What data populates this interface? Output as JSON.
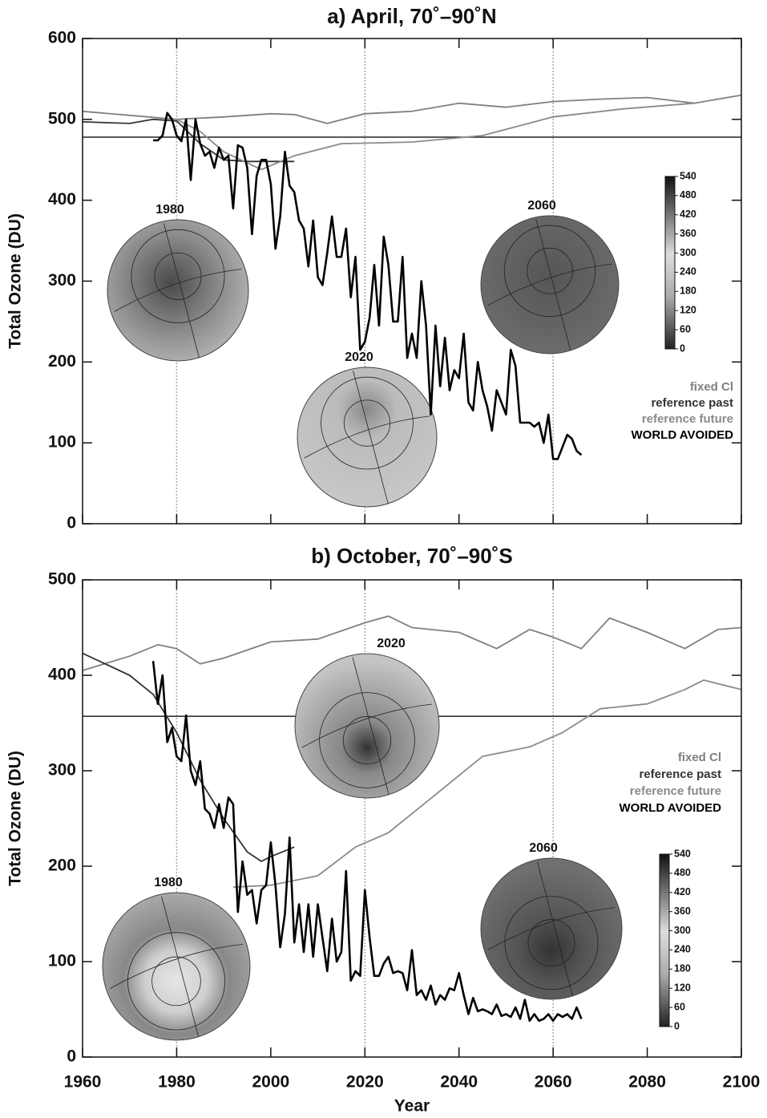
{
  "chart_data": [
    {
      "type": "line",
      "title": "a) April, 70˚–90˚N",
      "ylabel": "Total Ozone (DU)",
      "xlim": [
        1960,
        2100
      ],
      "xticks": [
        1960,
        1980,
        2000,
        2020,
        2040,
        2060,
        2080,
        2100
      ],
      "xtick_labels": false,
      "ylim": [
        0,
        600
      ],
      "yticks": [
        0,
        100,
        200,
        300,
        400,
        500,
        600
      ],
      "xgrid": [
        1980,
        2020,
        2060
      ],
      "hline": 478,
      "series": [
        {
          "name": "fixed Cl",
          "color": "#808080",
          "x": [
            1960,
            1970,
            1980,
            1990,
            2000,
            2005,
            2012,
            2020,
            2030,
            2040,
            2050,
            2060,
            2070,
            2080,
            2090,
            2100
          ],
          "values": [
            510,
            505,
            500,
            503,
            507,
            506,
            495,
            507,
            510,
            520,
            515,
            522,
            525,
            527,
            520,
            530
          ]
        },
        {
          "name": "reference past",
          "color": "#333333",
          "x": [
            1960,
            1970,
            1975,
            1980,
            1985,
            1990,
            1995,
            2000,
            2005
          ],
          "values": [
            497,
            495,
            500,
            498,
            470,
            450,
            448,
            448,
            448
          ]
        },
        {
          "name": "reference future",
          "color": "#8a8a8a",
          "x": [
            1980,
            1985,
            1990,
            1998,
            2005,
            2015,
            2030,
            2045,
            2060,
            2075,
            2090,
            2100
          ],
          "values": [
            500,
            485,
            460,
            438,
            455,
            470,
            472,
            480,
            503,
            513,
            520,
            530
          ]
        },
        {
          "name": "WORLD AVOIDED",
          "color": "#000000",
          "x": [
            1975,
            1976,
            1977,
            1978,
            1979,
            1980,
            1981,
            1982,
            1983,
            1984,
            1985,
            1986,
            1987,
            1988,
            1989,
            1990,
            1991,
            1992,
            1993,
            1994,
            1995,
            1996,
            1997,
            1998,
            1999,
            2000,
            2001,
            2002,
            2003,
            2004,
            2005,
            2006,
            2007,
            2008,
            2009,
            2010,
            2011,
            2012,
            2013,
            2014,
            2015,
            2016,
            2017,
            2018,
            2019,
            2020,
            2021,
            2022,
            2023,
            2024,
            2025,
            2026,
            2027,
            2028,
            2029,
            2030,
            2031,
            2032,
            2033,
            2034,
            2035,
            2036,
            2037,
            2038,
            2039,
            2040,
            2041,
            2042,
            2043,
            2044,
            2045,
            2046,
            2047,
            2048,
            2049,
            2050,
            2051,
            2052,
            2053,
            2054,
            2055,
            2056,
            2057,
            2058,
            2059,
            2060,
            2061,
            2062,
            2063,
            2064,
            2065,
            2066
          ],
          "values": [
            474,
            474,
            480,
            508,
            500,
            480,
            473,
            500,
            425,
            500,
            470,
            455,
            460,
            440,
            465,
            450,
            455,
            390,
            468,
            465,
            440,
            358,
            430,
            450,
            450,
            420,
            340,
            380,
            460,
            418,
            410,
            375,
            365,
            318,
            375,
            305,
            295,
            335,
            380,
            330,
            330,
            365,
            280,
            330,
            215,
            225,
            255,
            320,
            245,
            355,
            320,
            250,
            250,
            330,
            205,
            235,
            205,
            300,
            245,
            135,
            245,
            170,
            230,
            165,
            190,
            180,
            235,
            150,
            140,
            200,
            165,
            145,
            115,
            165,
            150,
            135,
            215,
            195,
            125,
            125,
            125,
            120,
            125,
            100,
            135,
            80,
            80,
            95,
            110,
            105,
            90,
            85
          ]
        }
      ],
      "globes": [
        {
          "label": "1980"
        },
        {
          "label": "2020"
        },
        {
          "label": "2060"
        }
      ],
      "colorbar_ticks": [
        540,
        480,
        420,
        360,
        300,
        240,
        180,
        120,
        60,
        0
      ]
    },
    {
      "type": "line",
      "title": "b) October, 70˚–90˚S",
      "ylabel": "Total Ozone (DU)",
      "xlabel": "Year",
      "xlim": [
        1960,
        2100
      ],
      "xticks": [
        1960,
        1980,
        2000,
        2020,
        2040,
        2060,
        2080,
        2100
      ],
      "xtick_labels": true,
      "ylim": [
        0,
        500
      ],
      "yticks": [
        0,
        100,
        200,
        300,
        400,
        500
      ],
      "xgrid": [
        1980,
        2020,
        2060
      ],
      "hline": 357,
      "series": [
        {
          "name": "fixed Cl",
          "color": "#808080",
          "x": [
            1960,
            1970,
            1976,
            1980,
            1985,
            1990,
            2000,
            2010,
            2020,
            2025,
            2030,
            2040,
            2048,
            2055,
            2060,
            2066,
            2072,
            2080,
            2088,
            2095,
            2100
          ],
          "values": [
            405,
            420,
            432,
            428,
            412,
            418,
            435,
            438,
            455,
            462,
            450,
            445,
            428,
            448,
            440,
            428,
            460,
            445,
            428,
            448,
            450
          ]
        },
        {
          "name": "reference past",
          "color": "#333333",
          "x": [
            1960,
            1970,
            1975,
            1980,
            1985,
            1990,
            1995,
            1998,
            2000,
            2005
          ],
          "values": [
            423,
            400,
            380,
            340,
            290,
            250,
            215,
            205,
            210,
            220
          ]
        },
        {
          "name": "reference future",
          "color": "#8a8a8a",
          "x": [
            1992,
            2000,
            2010,
            2018,
            2025,
            2035,
            2045,
            2055,
            2062,
            2070,
            2080,
            2088,
            2092,
            2100
          ],
          "values": [
            178,
            180,
            190,
            220,
            235,
            275,
            315,
            325,
            340,
            365,
            370,
            385,
            395,
            385
          ]
        },
        {
          "name": "WORLD AVOIDED",
          "color": "#000000",
          "x": [
            1975,
            1976,
            1977,
            1978,
            1979,
            1980,
            1981,
            1982,
            1983,
            1984,
            1985,
            1986,
            1987,
            1988,
            1989,
            1990,
            1991,
            1992,
            1993,
            1994,
            1995,
            1996,
            1997,
            1998,
            1999,
            2000,
            2001,
            2002,
            2003,
            2004,
            2005,
            2006,
            2007,
            2008,
            2009,
            2010,
            2011,
            2012,
            2013,
            2014,
            2015,
            2016,
            2017,
            2018,
            2019,
            2020,
            2021,
            2022,
            2023,
            2024,
            2025,
            2026,
            2027,
            2028,
            2029,
            2030,
            2031,
            2032,
            2033,
            2034,
            2035,
            2036,
            2037,
            2038,
            2039,
            2040,
            2041,
            2042,
            2043,
            2044,
            2045,
            2046,
            2047,
            2048,
            2049,
            2050,
            2051,
            2052,
            2053,
            2054,
            2055,
            2056,
            2057,
            2058,
            2059,
            2060,
            2061,
            2062,
            2063,
            2064,
            2065,
            2066
          ],
          "values": [
            415,
            370,
            400,
            330,
            345,
            315,
            310,
            358,
            300,
            285,
            310,
            260,
            255,
            240,
            265,
            240,
            272,
            265,
            152,
            205,
            170,
            175,
            140,
            175,
            180,
            225,
            180,
            115,
            150,
            230,
            120,
            160,
            110,
            160,
            105,
            160,
            125,
            90,
            145,
            100,
            110,
            195,
            80,
            90,
            85,
            175,
            125,
            85,
            85,
            98,
            105,
            88,
            90,
            88,
            70,
            112,
            65,
            70,
            60,
            75,
            55,
            65,
            60,
            72,
            70,
            88,
            65,
            45,
            62,
            48,
            50,
            48,
            45,
            55,
            43,
            45,
            42,
            52,
            40,
            60,
            38,
            45,
            38,
            40,
            45,
            38,
            45,
            42,
            45,
            40,
            52,
            40
          ]
        }
      ],
      "globes": [
        {
          "label": "2020"
        },
        {
          "label": "1980"
        },
        {
          "label": "2060"
        }
      ],
      "colorbar_ticks": [
        540,
        480,
        420,
        360,
        300,
        240,
        180,
        120,
        60,
        0
      ]
    }
  ]
}
